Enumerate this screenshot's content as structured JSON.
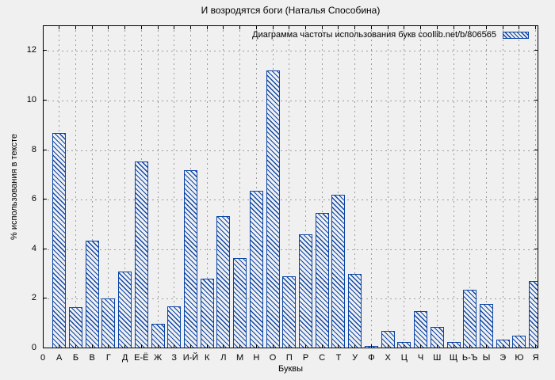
{
  "figure": {
    "title": "И возродятся боги (Наталья Способина)"
  },
  "chart_data": {
    "type": "bar",
    "title": "И возродятся боги (Наталья Способина)",
    "legend_label": "Диаграмма частоты использования букв coollib.net/b/806565",
    "legend_position": "top-right-inside",
    "xlabel": "Буквы",
    "ylabel": "% использования в тексте",
    "origin_label": "0",
    "categories": [
      "А",
      "Б",
      "В",
      "Г",
      "Д",
      "Е-Ё",
      "Ж",
      "З",
      "И-Й",
      "К",
      "Л",
      "М",
      "Н",
      "О",
      "П",
      "Р",
      "С",
      "Т",
      "У",
      "Ф",
      "Х",
      "Ц",
      "Ч",
      "Ш",
      "Щ",
      "Ь-Ъ",
      "Ы",
      "Э",
      "Ю",
      "Я"
    ],
    "values": [
      8.7,
      1.65,
      4.35,
      2.0,
      3.1,
      7.55,
      1.0,
      1.7,
      7.2,
      2.8,
      5.35,
      3.65,
      6.35,
      11.2,
      2.9,
      4.6,
      5.45,
      6.2,
      3.0,
      0.1,
      0.7,
      0.25,
      1.5,
      0.85,
      0.25,
      2.35,
      1.8,
      0.35,
      0.5,
      2.7
    ],
    "yticks": [
      0,
      2,
      4,
      6,
      8,
      10,
      12
    ],
    "ylim": [
      0,
      13
    ],
    "grid": true,
    "bar_style": "diagonal-hatch",
    "colors": {
      "bar": "#0b45a6",
      "background": "#f0f0f0",
      "grid": "#9c9c9c",
      "border": "#000000",
      "text": "#000000"
    }
  }
}
